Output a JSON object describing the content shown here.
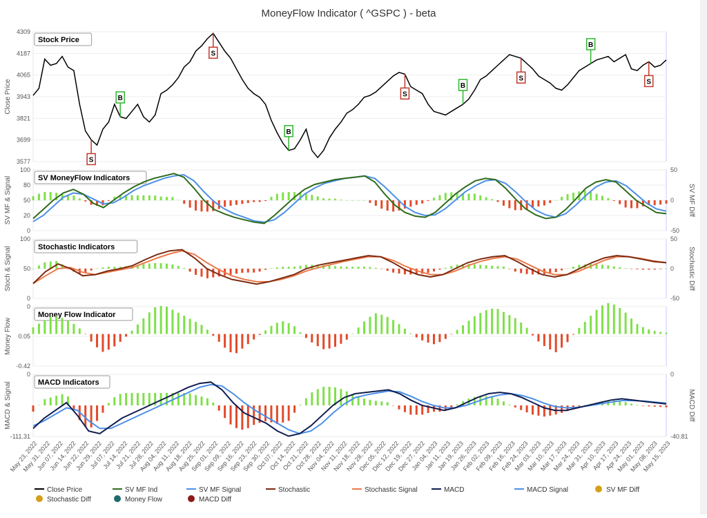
{
  "title": "MoneyFlow Indicator ( ^GSPC ) - beta",
  "colors": {
    "close": "#000000",
    "mf_ind": "#2e6b1a",
    "mf_signal": "#4a8fe8",
    "stoch": "#7b2a10",
    "stoch_signal": "#ea7a4a",
    "macd": "#101c4e",
    "macd_signal": "#4a8fe8",
    "pos_bar": "#7fe04a",
    "neg_bar": "#e24a2a",
    "buy": "#2db52d",
    "sell": "#c0392b",
    "legend_sv_diff": "#d4a017",
    "legend_money_flow": "#1f6b6b",
    "legend_macd_diff": "#8b1a1a"
  },
  "x_labels": [
    "May 23, 2022",
    "May 31, 2022",
    "Jun 07, 2022",
    "Jun 14, 2022",
    "Jun 22, 2022",
    "Jun 29, 2022",
    "Jul 07, 2022",
    "Jul 14, 2022",
    "Jul 21, 2022",
    "Jul 28, 2022",
    "Aug 04, 2022",
    "Aug 11, 2022",
    "Aug 18, 2022",
    "Aug 25, 2022",
    "Sep 01, 2022",
    "Sep 09, 2022",
    "Sep 16, 2022",
    "Sep 23, 2022",
    "Sep 30, 2022",
    "Oct 07, 2022",
    "Oct 14, 2022",
    "Oct 21, 2022",
    "Oct 28, 2022",
    "Nov 04, 2022",
    "Nov 11, 2022",
    "Nov 18, 2022",
    "Nov 28, 2022",
    "Dec 05, 2022",
    "Dec 12, 2022",
    "Dec 19, 2022",
    "Dec 27, 2022",
    "Jan 04, 2023",
    "Jan 11, 2023",
    "Jan 19, 2023",
    "Jan 26, 2023",
    "Feb 02, 2023",
    "Feb 09, 2023",
    "Feb 16, 2023",
    "Feb 24, 2023",
    "Mar 03, 2023",
    "Mar 10, 2023",
    "Mar 17, 2023",
    "Mar 24, 2023",
    "Mar 31, 2023",
    "Apr 10, 2023",
    "Apr 17, 2023",
    "Apr 24, 2023",
    "May 01, 2023",
    "May 08, 2023",
    "May 15, 2023"
  ],
  "chart_data": [
    {
      "panel": "Stock Price",
      "type": "line",
      "ylabel": "Close Price",
      "ylim": [
        3577,
        4309
      ],
      "yticks": [
        "4309",
        "4187",
        "4065",
        "3943",
        "3821",
        "3699",
        "3577"
      ],
      "series": [
        {
          "name": "Close Price",
          "values": [
            3950,
            3990,
            4155,
            4120,
            4130,
            4170,
            4110,
            4090,
            3900,
            3750,
            3700,
            3670,
            3760,
            3800,
            3900,
            3830,
            3820,
            3860,
            3900,
            3830,
            3800,
            3840,
            3960,
            3980,
            4010,
            4050,
            4110,
            4140,
            4200,
            4230,
            4270,
            4300,
            4250,
            4200,
            4160,
            4100,
            4040,
            3990,
            3960,
            3940,
            3900,
            3810,
            3740,
            3680,
            3640,
            3650,
            3700,
            3760,
            3640,
            3600,
            3640,
            3710,
            3760,
            3800,
            3850,
            3870,
            3900,
            3940,
            3950,
            3970,
            4000,
            4030,
            4060,
            4080,
            4070,
            4000,
            3980,
            3960,
            3900,
            3860,
            3850,
            3840,
            3860,
            3880,
            3900,
            3930,
            3980,
            4040,
            4060,
            4090,
            4120,
            4150,
            4180,
            4170,
            4160,
            4130,
            4100,
            4060,
            4040,
            4020,
            3990,
            3980,
            4010,
            4050,
            4090,
            4110,
            4130,
            4150,
            4160,
            4170,
            4140,
            4160,
            4180,
            4100,
            4090,
            4120,
            4140,
            4110,
            4120,
            4150
          ]
        }
      ],
      "markers": [
        {
          "label": "S",
          "index": 11,
          "kind": "sell"
        },
        {
          "label": "B",
          "index": 17,
          "kind": "buy"
        },
        {
          "label": "S",
          "index": 35,
          "kind": "sell"
        },
        {
          "label": "B",
          "index": 50,
          "kind": "buy"
        },
        {
          "label": "S",
          "index": 73,
          "kind": "sell"
        },
        {
          "label": "B",
          "index": 85,
          "kind": "buy"
        },
        {
          "label": "S",
          "index": 96,
          "kind": "sell"
        },
        {
          "label": "B",
          "index": 110,
          "kind": "buy"
        },
        {
          "label": "S",
          "index": 121,
          "kind": "sell"
        }
      ]
    },
    {
      "panel": "SV MoneyFlow Indicators",
      "type": "line+bar",
      "ylabel": "SV MF & Signal",
      "ylabel_right": "SV MF Diff",
      "ylim": [
        0,
        100
      ],
      "yticks": [
        "100",
        "80",
        "50",
        "20",
        "0"
      ],
      "yticks_right": [
        "50",
        "0",
        "-50"
      ],
      "series": [
        {
          "name": "SV MF Ind",
          "values": [
            20,
            35,
            50,
            62,
            68,
            60,
            45,
            38,
            50,
            62,
            72,
            80,
            86,
            90,
            94,
            88,
            70,
            50,
            35,
            28,
            22,
            18,
            14,
            12,
            25,
            40,
            55,
            68,
            76,
            80,
            84,
            86,
            88,
            90,
            80,
            60,
            42,
            30,
            24,
            22,
            30,
            45,
            60,
            72,
            82,
            86,
            84,
            70,
            52,
            36,
            26,
            20,
            22,
            35,
            52,
            70,
            80,
            84,
            80,
            65,
            50,
            40,
            30,
            28
          ]
        },
        {
          "name": "SV MF Signal",
          "values": [
            15,
            25,
            40,
            55,
            62,
            60,
            52,
            44,
            46,
            55,
            66,
            74,
            80,
            86,
            90,
            92,
            82,
            64,
            48,
            36,
            28,
            22,
            16,
            14,
            18,
            30,
            45,
            60,
            70,
            78,
            82,
            86,
            88,
            90,
            86,
            72,
            56,
            40,
            30,
            25,
            26,
            36,
            50,
            64,
            74,
            82,
            84,
            78,
            64,
            48,
            34,
            26,
            22,
            28,
            42,
            58,
            72,
            80,
            82,
            74,
            60,
            46,
            36,
            32
          ]
        }
      ]
    },
    {
      "panel": "Stochastic Indicators",
      "type": "line+bar",
      "ylabel": "Stoch & Signal",
      "ylabel_right": "Stochastic Diff",
      "ylim": [
        0,
        100
      ],
      "yticks": [
        "100",
        "50",
        "0"
      ],
      "yticks_right": [
        "50",
        "0",
        "-50"
      ],
      "series": [
        {
          "name": "Stochastic",
          "values": [
            25,
            45,
            58,
            50,
            38,
            40,
            46,
            50,
            55,
            65,
            74,
            80,
            82,
            68,
            50,
            40,
            32,
            28,
            24,
            28,
            34,
            40,
            50,
            56,
            60,
            64,
            68,
            72,
            70,
            60,
            48,
            40,
            36,
            40,
            50,
            60,
            66,
            70,
            72,
            62,
            50,
            40,
            36,
            40,
            50,
            60,
            68,
            72,
            70,
            66,
            62,
            60
          ]
        },
        {
          "name": "Stochastic Signal",
          "values": [
            25,
            38,
            50,
            52,
            44,
            40,
            44,
            48,
            52,
            60,
            68,
            75,
            80,
            74,
            60,
            48,
            38,
            32,
            28,
            28,
            32,
            38,
            46,
            52,
            57,
            62,
            66,
            70,
            70,
            64,
            54,
            46,
            40,
            40,
            46,
            55,
            62,
            67,
            70,
            66,
            56,
            46,
            40,
            40,
            46,
            55,
            64,
            70,
            70,
            67,
            63,
            60
          ]
        }
      ]
    },
    {
      "panel": "Money Flow Indicator",
      "type": "bar",
      "ylabel": "Money Flow",
      "ylim": [
        -0.42,
        0.28
      ],
      "yticks": [
        "0",
        "0.05",
        "-0.42"
      ],
      "values": [
        0.05,
        0.1,
        0.14,
        0.12,
        0.08,
        0.02,
        -0.08,
        -0.14,
        -0.1,
        -0.04,
        0.04,
        0.12,
        0.2,
        0.22,
        0.18,
        0.14,
        0.1,
        0.06,
        -0.02,
        -0.1,
        -0.16,
        -0.1,
        -0.04,
        0.02,
        0.08,
        0.1,
        0.06,
        -0.02,
        -0.08,
        -0.12,
        -0.1,
        -0.06,
        0.02,
        0.1,
        0.16,
        0.14,
        0.1,
        0.04,
        -0.02,
        -0.06,
        -0.08,
        -0.04,
        0.02,
        0.08,
        0.14,
        0.18,
        0.2,
        0.16,
        0.12,
        0.06,
        -0.04,
        -0.1,
        -0.14,
        -0.08,
        0.02,
        0.1,
        0.18,
        0.24,
        0.22,
        0.16,
        0.08,
        0.04,
        0.02,
        0.01
      ]
    },
    {
      "panel": "MACD Indicators",
      "type": "line+bar",
      "ylabel": "MACD & Signal",
      "ylabel_right": "MACD Diff",
      "ylim": [
        -111.31,
        130
      ],
      "yticks": [
        "0",
        "-111.31"
      ],
      "yticks_right": [
        "0",
        "-40.81"
      ],
      "series": [
        {
          "name": "MACD",
          "values": [
            -80,
            -40,
            -10,
            20,
            -30,
            -90,
            -100,
            -70,
            -40,
            -20,
            0,
            20,
            40,
            60,
            80,
            95,
            100,
            70,
            20,
            -20,
            -40,
            -60,
            -90,
            -110,
            -100,
            -70,
            -30,
            10,
            40,
            55,
            60,
            65,
            70,
            55,
            30,
            10,
            0,
            -10,
            0,
            20,
            40,
            55,
            60,
            55,
            40,
            20,
            0,
            -10,
            -10,
            0,
            10,
            20,
            30,
            35,
            30,
            25,
            20,
            15
          ]
        },
        {
          "name": "MACD Signal",
          "values": [
            -70,
            -50,
            -25,
            0,
            -10,
            -50,
            -80,
            -80,
            -60,
            -40,
            -20,
            0,
            20,
            40,
            60,
            80,
            90,
            85,
            55,
            20,
            -10,
            -35,
            -60,
            -85,
            -100,
            -90,
            -60,
            -20,
            15,
            40,
            50,
            58,
            65,
            62,
            45,
            25,
            10,
            0,
            0,
            10,
            25,
            40,
            50,
            55,
            48,
            35,
            18,
            5,
            0,
            2,
            8,
            15,
            22,
            28,
            28,
            26,
            22,
            18
          ]
        }
      ]
    }
  ],
  "legend": [
    {
      "name": "Close Price",
      "marker": "line",
      "color": "#000000"
    },
    {
      "name": "SV MF Ind",
      "marker": "line",
      "color": "#2e6b1a"
    },
    {
      "name": "SV MF Signal",
      "marker": "line",
      "color": "#4a8fe8"
    },
    {
      "name": "Stochastic",
      "marker": "line",
      "color": "#7b2a10"
    },
    {
      "name": "Stochastic Signal",
      "marker": "line",
      "color": "#ea7a4a"
    },
    {
      "name": "MACD",
      "marker": "line",
      "color": "#101c4e"
    },
    {
      "name": "MACD Signal",
      "marker": "line",
      "color": "#4a8fe8"
    },
    {
      "name": "SV MF Diff",
      "marker": "dot",
      "color": "#d4a017"
    },
    {
      "name": "Stochastic Diff",
      "marker": "dot",
      "color": "#d4a017"
    },
    {
      "name": "Money Flow",
      "marker": "dot",
      "color": "#1f6b6b"
    },
    {
      "name": "MACD Diff",
      "marker": "dot",
      "color": "#8b1a1a"
    }
  ]
}
